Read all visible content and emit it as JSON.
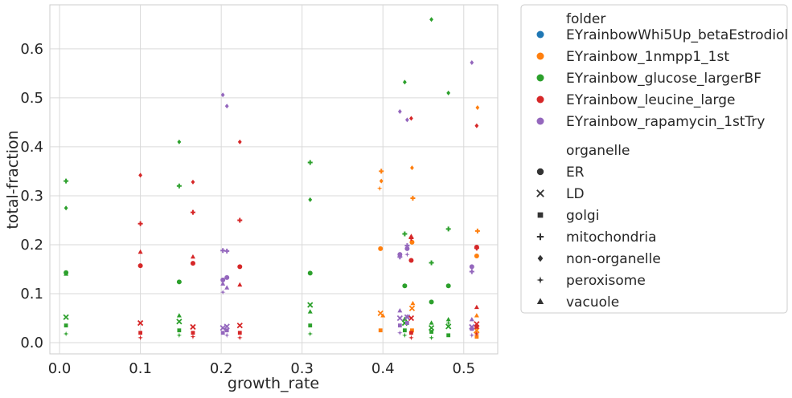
{
  "chart_data": {
    "type": "scatter",
    "xlabel": "growth_rate",
    "ylabel": "total-fraction",
    "xlim": [
      -0.012,
      0.542
    ],
    "ylim": [
      -0.023,
      0.69
    ],
    "xticks": [
      "0.0",
      "0.1",
      "0.2",
      "0.3",
      "0.4",
      "0.5"
    ],
    "yticks": [
      "0.0",
      "0.1",
      "0.2",
      "0.3",
      "0.4",
      "0.5",
      "0.6"
    ],
    "grid": true,
    "legend_position": "outside-right",
    "legend": {
      "hue_title": "folder",
      "style_title": "organelle"
    },
    "colors": {
      "EYrainbowWhi5Up_betaEstrodiol": "#1f77b4",
      "EYrainbow_1nmpp1_1st": "#ff7f0e",
      "EYrainbow_glucose_largerBF": "#2ca02c",
      "EYrainbow_leucine_large": "#d62728",
      "EYrainbow_rapamycin_1stTry": "#9467bd"
    },
    "folders": [
      "EYrainbowWhi5Up_betaEstrodiol",
      "EYrainbow_1nmpp1_1st",
      "EYrainbow_glucose_largerBF",
      "EYrainbow_leucine_large",
      "EYrainbow_rapamycin_1stTry"
    ],
    "organelles": [
      "ER",
      "LD",
      "golgi",
      "mitochondria",
      "non-organelle",
      "peroxisome",
      "vacuole"
    ],
    "markers": {
      "ER": "circle",
      "LD": "x",
      "golgi": "square",
      "mitochondria": "plus",
      "non-organelle": "diamond",
      "peroxisome": "star",
      "vacuole": "triangle"
    },
    "series": [
      {
        "folder": "EYrainbow_1nmpp1_1st",
        "points": [
          {
            "x": 0.397,
            "y": 0.192,
            "organelle": "ER"
          },
          {
            "x": 0.397,
            "y": 0.06,
            "organelle": "LD"
          },
          {
            "x": 0.397,
            "y": 0.025,
            "organelle": "golgi"
          },
          {
            "x": 0.398,
            "y": 0.35,
            "organelle": "mitochondria"
          },
          {
            "x": 0.398,
            "y": 0.33,
            "organelle": "non-organelle"
          },
          {
            "x": 0.396,
            "y": 0.315,
            "organelle": "peroxisome"
          },
          {
            "x": 0.4,
            "y": 0.055,
            "organelle": "vacuole"
          },
          {
            "x": 0.436,
            "y": 0.205,
            "organelle": "ER"
          },
          {
            "x": 0.436,
            "y": 0.07,
            "organelle": "LD"
          },
          {
            "x": 0.436,
            "y": 0.025,
            "organelle": "golgi"
          },
          {
            "x": 0.437,
            "y": 0.295,
            "organelle": "mitochondria"
          },
          {
            "x": 0.436,
            "y": 0.357,
            "organelle": "non-organelle"
          },
          {
            "x": 0.435,
            "y": 0.02,
            "organelle": "peroxisome"
          },
          {
            "x": 0.437,
            "y": 0.08,
            "organelle": "vacuole"
          },
          {
            "x": 0.516,
            "y": 0.177,
            "organelle": "ER"
          },
          {
            "x": 0.516,
            "y": 0.025,
            "organelle": "LD"
          },
          {
            "x": 0.516,
            "y": 0.012,
            "organelle": "golgi"
          },
          {
            "x": 0.517,
            "y": 0.228,
            "organelle": "mitochondria"
          },
          {
            "x": 0.517,
            "y": 0.48,
            "organelle": "non-organelle"
          },
          {
            "x": 0.515,
            "y": 0.02,
            "organelle": "peroxisome"
          },
          {
            "x": 0.516,
            "y": 0.055,
            "organelle": "vacuole"
          }
        ]
      },
      {
        "folder": "EYrainbow_glucose_largerBF",
        "points": [
          {
            "x": 0.008,
            "y": 0.143,
            "organelle": "ER"
          },
          {
            "x": 0.008,
            "y": 0.052,
            "organelle": "LD"
          },
          {
            "x": 0.008,
            "y": 0.035,
            "organelle": "golgi"
          },
          {
            "x": 0.008,
            "y": 0.33,
            "organelle": "mitochondria"
          },
          {
            "x": 0.008,
            "y": 0.275,
            "organelle": "non-organelle"
          },
          {
            "x": 0.008,
            "y": 0.018,
            "organelle": "peroxisome"
          },
          {
            "x": 0.008,
            "y": 0.14,
            "organelle": "vacuole"
          },
          {
            "x": 0.148,
            "y": 0.124,
            "organelle": "ER"
          },
          {
            "x": 0.148,
            "y": 0.043,
            "organelle": "LD"
          },
          {
            "x": 0.148,
            "y": 0.025,
            "organelle": "golgi"
          },
          {
            "x": 0.148,
            "y": 0.32,
            "organelle": "mitochondria"
          },
          {
            "x": 0.148,
            "y": 0.41,
            "organelle": "non-organelle"
          },
          {
            "x": 0.148,
            "y": 0.015,
            "organelle": "peroxisome"
          },
          {
            "x": 0.148,
            "y": 0.055,
            "organelle": "vacuole"
          },
          {
            "x": 0.31,
            "y": 0.142,
            "organelle": "ER"
          },
          {
            "x": 0.31,
            "y": 0.077,
            "organelle": "LD"
          },
          {
            "x": 0.31,
            "y": 0.035,
            "organelle": "golgi"
          },
          {
            "x": 0.31,
            "y": 0.368,
            "organelle": "mitochondria"
          },
          {
            "x": 0.31,
            "y": 0.292,
            "organelle": "non-organelle"
          },
          {
            "x": 0.31,
            "y": 0.018,
            "organelle": "peroxisome"
          },
          {
            "x": 0.31,
            "y": 0.063,
            "organelle": "vacuole"
          },
          {
            "x": 0.427,
            "y": 0.116,
            "organelle": "ER"
          },
          {
            "x": 0.427,
            "y": 0.04,
            "organelle": "LD"
          },
          {
            "x": 0.427,
            "y": 0.025,
            "organelle": "golgi"
          },
          {
            "x": 0.427,
            "y": 0.222,
            "organelle": "mitochondria"
          },
          {
            "x": 0.427,
            "y": 0.532,
            "organelle": "non-organelle"
          },
          {
            "x": 0.427,
            "y": 0.015,
            "organelle": "peroxisome"
          },
          {
            "x": 0.427,
            "y": 0.048,
            "organelle": "vacuole"
          },
          {
            "x": 0.46,
            "y": 0.083,
            "organelle": "ER"
          },
          {
            "x": 0.46,
            "y": 0.03,
            "organelle": "LD"
          },
          {
            "x": 0.46,
            "y": 0.022,
            "organelle": "golgi"
          },
          {
            "x": 0.46,
            "y": 0.163,
            "organelle": "mitochondria"
          },
          {
            "x": 0.46,
            "y": 0.66,
            "organelle": "non-organelle"
          },
          {
            "x": 0.46,
            "y": 0.01,
            "organelle": "peroxisome"
          },
          {
            "x": 0.46,
            "y": 0.04,
            "organelle": "vacuole"
          },
          {
            "x": 0.481,
            "y": 0.116,
            "organelle": "ER"
          },
          {
            "x": 0.481,
            "y": 0.033,
            "organelle": "LD"
          },
          {
            "x": 0.481,
            "y": 0.015,
            "organelle": "golgi"
          },
          {
            "x": 0.481,
            "y": 0.232,
            "organelle": "mitochondria"
          },
          {
            "x": 0.481,
            "y": 0.51,
            "organelle": "non-organelle"
          },
          {
            "x": 0.481,
            "y": 0.04,
            "organelle": "peroxisome"
          },
          {
            "x": 0.481,
            "y": 0.047,
            "organelle": "vacuole"
          }
        ]
      },
      {
        "folder": "EYrainbow_leucine_large",
        "points": [
          {
            "x": 0.1,
            "y": 0.157,
            "organelle": "ER"
          },
          {
            "x": 0.1,
            "y": 0.04,
            "organelle": "LD"
          },
          {
            "x": 0.1,
            "y": 0.02,
            "organelle": "golgi"
          },
          {
            "x": 0.1,
            "y": 0.243,
            "organelle": "mitochondria"
          },
          {
            "x": 0.1,
            "y": 0.342,
            "organelle": "non-organelle"
          },
          {
            "x": 0.1,
            "y": 0.01,
            "organelle": "peroxisome"
          },
          {
            "x": 0.1,
            "y": 0.185,
            "organelle": "vacuole"
          },
          {
            "x": 0.165,
            "y": 0.162,
            "organelle": "ER"
          },
          {
            "x": 0.165,
            "y": 0.032,
            "organelle": "LD"
          },
          {
            "x": 0.165,
            "y": 0.02,
            "organelle": "golgi"
          },
          {
            "x": 0.165,
            "y": 0.266,
            "organelle": "mitochondria"
          },
          {
            "x": 0.165,
            "y": 0.328,
            "organelle": "non-organelle"
          },
          {
            "x": 0.165,
            "y": 0.012,
            "organelle": "peroxisome"
          },
          {
            "x": 0.165,
            "y": 0.175,
            "organelle": "vacuole"
          },
          {
            "x": 0.223,
            "y": 0.155,
            "organelle": "ER"
          },
          {
            "x": 0.223,
            "y": 0.035,
            "organelle": "LD"
          },
          {
            "x": 0.223,
            "y": 0.02,
            "organelle": "golgi"
          },
          {
            "x": 0.223,
            "y": 0.25,
            "organelle": "mitochondria"
          },
          {
            "x": 0.223,
            "y": 0.41,
            "organelle": "non-organelle"
          },
          {
            "x": 0.223,
            "y": 0.01,
            "organelle": "peroxisome"
          },
          {
            "x": 0.223,
            "y": 0.118,
            "organelle": "vacuole"
          },
          {
            "x": 0.435,
            "y": 0.168,
            "organelle": "ER"
          },
          {
            "x": 0.435,
            "y": 0.05,
            "organelle": "LD"
          },
          {
            "x": 0.435,
            "y": 0.02,
            "organelle": "golgi"
          },
          {
            "x": 0.435,
            "y": 0.213,
            "organelle": "mitochondria"
          },
          {
            "x": 0.435,
            "y": 0.458,
            "organelle": "non-organelle"
          },
          {
            "x": 0.435,
            "y": 0.01,
            "organelle": "peroxisome"
          },
          {
            "x": 0.435,
            "y": 0.217,
            "organelle": "vacuole"
          },
          {
            "x": 0.516,
            "y": 0.195,
            "organelle": "ER"
          },
          {
            "x": 0.516,
            "y": 0.038,
            "organelle": "LD"
          },
          {
            "x": 0.516,
            "y": 0.032,
            "organelle": "golgi"
          },
          {
            "x": 0.516,
            "y": 0.193,
            "organelle": "mitochondria"
          },
          {
            "x": 0.516,
            "y": 0.443,
            "organelle": "non-organelle"
          },
          {
            "x": 0.516,
            "y": 0.018,
            "organelle": "peroxisome"
          },
          {
            "x": 0.516,
            "y": 0.072,
            "organelle": "vacuole"
          }
        ]
      },
      {
        "folder": "EYrainbow_rapamycin_1stTry",
        "points": [
          {
            "x": 0.202,
            "y": 0.128,
            "organelle": "ER"
          },
          {
            "x": 0.202,
            "y": 0.03,
            "organelle": "LD"
          },
          {
            "x": 0.202,
            "y": 0.02,
            "organelle": "golgi"
          },
          {
            "x": 0.202,
            "y": 0.188,
            "organelle": "mitochondria"
          },
          {
            "x": 0.202,
            "y": 0.506,
            "organelle": "non-organelle"
          },
          {
            "x": 0.202,
            "y": 0.103,
            "organelle": "peroxisome"
          },
          {
            "x": 0.202,
            "y": 0.12,
            "organelle": "vacuole"
          },
          {
            "x": 0.207,
            "y": 0.133,
            "organelle": "ER"
          },
          {
            "x": 0.207,
            "y": 0.033,
            "organelle": "LD"
          },
          {
            "x": 0.207,
            "y": 0.025,
            "organelle": "golgi"
          },
          {
            "x": 0.207,
            "y": 0.187,
            "organelle": "mitochondria"
          },
          {
            "x": 0.207,
            "y": 0.483,
            "organelle": "non-organelle"
          },
          {
            "x": 0.207,
            "y": 0.015,
            "organelle": "peroxisome"
          },
          {
            "x": 0.207,
            "y": 0.112,
            "organelle": "vacuole"
          },
          {
            "x": 0.421,
            "y": 0.18,
            "organelle": "ER"
          },
          {
            "x": 0.421,
            "y": 0.05,
            "organelle": "LD"
          },
          {
            "x": 0.421,
            "y": 0.035,
            "organelle": "golgi"
          },
          {
            "x": 0.421,
            "y": 0.175,
            "organelle": "mitochondria"
          },
          {
            "x": 0.421,
            "y": 0.472,
            "organelle": "non-organelle"
          },
          {
            "x": 0.421,
            "y": 0.02,
            "organelle": "peroxisome"
          },
          {
            "x": 0.421,
            "y": 0.065,
            "organelle": "vacuole"
          },
          {
            "x": 0.43,
            "y": 0.192,
            "organelle": "ER"
          },
          {
            "x": 0.43,
            "y": 0.052,
            "organelle": "LD"
          },
          {
            "x": 0.43,
            "y": 0.04,
            "organelle": "golgi"
          },
          {
            "x": 0.43,
            "y": 0.198,
            "organelle": "mitochondria"
          },
          {
            "x": 0.43,
            "y": 0.455,
            "organelle": "non-organelle"
          },
          {
            "x": 0.43,
            "y": 0.18,
            "organelle": "peroxisome"
          },
          {
            "x": 0.43,
            "y": 0.053,
            "organelle": "vacuole"
          },
          {
            "x": 0.51,
            "y": 0.155,
            "organelle": "ER"
          },
          {
            "x": 0.51,
            "y": 0.032,
            "organelle": "LD"
          },
          {
            "x": 0.51,
            "y": 0.028,
            "organelle": "golgi"
          },
          {
            "x": 0.51,
            "y": 0.145,
            "organelle": "mitochondria"
          },
          {
            "x": 0.51,
            "y": 0.572,
            "organelle": "non-organelle"
          },
          {
            "x": 0.51,
            "y": 0.015,
            "organelle": "peroxisome"
          },
          {
            "x": 0.51,
            "y": 0.047,
            "organelle": "vacuole"
          }
        ]
      }
    ]
  }
}
